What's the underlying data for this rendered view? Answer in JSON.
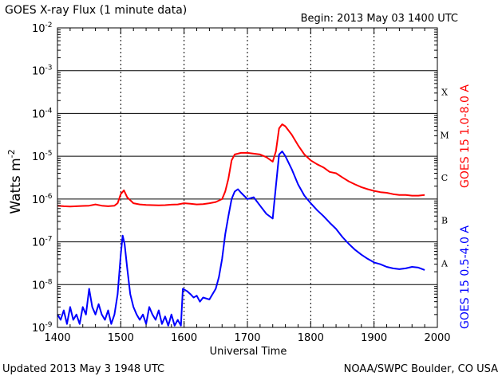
{
  "chart_data": {
    "type": "line",
    "title": "GOES X-ray Flux (1 minute data)",
    "begin_label": "Begin: 2013 May 03 1400 UTC",
    "xlabel": "Universal Time",
    "ylabel_main": "Watts m",
    "ylabel_sup": "-2",
    "footer_left": "Updated 2013 May  3 1948 UTC",
    "footer_right": "NOAA/SWPC Boulder, CO USA",
    "y_scale": "log",
    "xlim": [
      1400,
      2000
    ],
    "ylim": [
      1e-09,
      0.01
    ],
    "x_ticks": [
      "1400",
      "1500",
      "1600",
      "1700",
      "1800",
      "1900",
      "2000"
    ],
    "y_ticks": [
      {
        "base": "10",
        "exp": "-9"
      },
      {
        "base": "10",
        "exp": "-8"
      },
      {
        "base": "10",
        "exp": "-7"
      },
      {
        "base": "10",
        "exp": "-6"
      },
      {
        "base": "10",
        "exp": "-5"
      },
      {
        "base": "10",
        "exp": "-4"
      },
      {
        "base": "10",
        "exp": "-3"
      },
      {
        "base": "10",
        "exp": "-2"
      }
    ],
    "flare_classes": [
      {
        "label": "A",
        "level": 1e-08
      },
      {
        "label": "B",
        "level": 1e-07
      },
      {
        "label": "C",
        "level": 1e-06
      },
      {
        "label": "M",
        "level": 1e-05
      },
      {
        "label": "X",
        "level": 0.0001
      }
    ],
    "colors": {
      "long": "#ff0000",
      "short": "#0000ff",
      "grid": "#000000"
    },
    "series": [
      {
        "name": "GOES 15 1.0-8.0 A",
        "color": "#ff0000",
        "points": [
          [
            1400,
            7e-07
          ],
          [
            1410,
            6.8e-07
          ],
          [
            1420,
            6.7e-07
          ],
          [
            1430,
            6.8e-07
          ],
          [
            1440,
            6.9e-07
          ],
          [
            1450,
            7e-07
          ],
          [
            1460,
            7.5e-07
          ],
          [
            1470,
            7e-07
          ],
          [
            1480,
            6.8e-07
          ],
          [
            1490,
            7e-07
          ],
          [
            1495,
            8e-07
          ],
          [
            1500,
            1.3e-06
          ],
          [
            1505,
            1.6e-06
          ],
          [
            1510,
            1.1e-06
          ],
          [
            1520,
            8e-07
          ],
          [
            1530,
            7.5e-07
          ],
          [
            1540,
            7.3e-07
          ],
          [
            1550,
            7.2e-07
          ],
          [
            1560,
            7.1e-07
          ],
          [
            1570,
            7.2e-07
          ],
          [
            1580,
            7.4e-07
          ],
          [
            1590,
            7.5e-07
          ],
          [
            1600,
            8e-07
          ],
          [
            1610,
            7.8e-07
          ],
          [
            1620,
            7.5e-07
          ],
          [
            1630,
            7.6e-07
          ],
          [
            1640,
            8e-07
          ],
          [
            1650,
            8.5e-07
          ],
          [
            1660,
            1e-06
          ],
          [
            1665,
            1.5e-06
          ],
          [
            1670,
            3e-06
          ],
          [
            1675,
            8e-06
          ],
          [
            1680,
            1.1e-05
          ],
          [
            1690,
            1.2e-05
          ],
          [
            1700,
            1.2e-05
          ],
          [
            1710,
            1.15e-05
          ],
          [
            1720,
            1.1e-05
          ],
          [
            1730,
            9.5e-06
          ],
          [
            1740,
            7.5e-06
          ],
          [
            1745,
            1.3e-05
          ],
          [
            1750,
            4.5e-05
          ],
          [
            1755,
            5.6e-05
          ],
          [
            1760,
            5e-05
          ],
          [
            1770,
            3.2e-05
          ],
          [
            1780,
            1.8e-05
          ],
          [
            1790,
            1.1e-05
          ],
          [
            1800,
            8e-06
          ],
          [
            1810,
            6.5e-06
          ],
          [
            1820,
            5.5e-06
          ],
          [
            1830,
            4.3e-06
          ],
          [
            1840,
            4e-06
          ],
          [
            1850,
            3.2e-06
          ],
          [
            1860,
            2.6e-06
          ],
          [
            1870,
            2.2e-06
          ],
          [
            1880,
            1.9e-06
          ],
          [
            1890,
            1.7e-06
          ],
          [
            1900,
            1.55e-06
          ],
          [
            1910,
            1.45e-06
          ],
          [
            1920,
            1.4e-06
          ],
          [
            1930,
            1.3e-06
          ],
          [
            1940,
            1.25e-06
          ],
          [
            1950,
            1.25e-06
          ],
          [
            1960,
            1.2e-06
          ],
          [
            1970,
            1.2e-06
          ],
          [
            1980,
            1.25e-06
          ]
        ]
      },
      {
        "name": "GOES 15 0.5-4.0 A",
        "color": "#0000ff",
        "points": [
          [
            1400,
            2e-09
          ],
          [
            1405,
            1.5e-09
          ],
          [
            1410,
            2.5e-09
          ],
          [
            1415,
            1.2e-09
          ],
          [
            1420,
            3e-09
          ],
          [
            1425,
            1.5e-09
          ],
          [
            1430,
            2e-09
          ],
          [
            1435,
            1.2e-09
          ],
          [
            1440,
            3e-09
          ],
          [
            1445,
            2e-09
          ],
          [
            1450,
            8e-09
          ],
          [
            1455,
            3e-09
          ],
          [
            1460,
            2e-09
          ],
          [
            1465,
            3.5e-09
          ],
          [
            1470,
            2e-09
          ],
          [
            1475,
            1.5e-09
          ],
          [
            1480,
            2.5e-09
          ],
          [
            1485,
            1.2e-09
          ],
          [
            1490,
            2e-09
          ],
          [
            1495,
            6e-09
          ],
          [
            1500,
            5e-08
          ],
          [
            1503,
            1.4e-07
          ],
          [
            1506,
            9e-08
          ],
          [
            1510,
            2.5e-08
          ],
          [
            1515,
            6e-09
          ],
          [
            1520,
            3e-09
          ],
          [
            1525,
            2e-09
          ],
          [
            1530,
            1.5e-09
          ],
          [
            1535,
            2e-09
          ],
          [
            1540,
            1.2e-09
          ],
          [
            1545,
            3e-09
          ],
          [
            1550,
            2e-09
          ],
          [
            1555,
            1.5e-09
          ],
          [
            1560,
            2.5e-09
          ],
          [
            1565,
            1.2e-09
          ],
          [
            1570,
            1.8e-09
          ],
          [
            1575,
            1.1e-09
          ],
          [
            1580,
            2e-09
          ],
          [
            1585,
            1.1e-09
          ],
          [
            1590,
            1.5e-09
          ],
          [
            1595,
            1.1e-09
          ],
          [
            1598,
            8e-09
          ],
          [
            1605,
            7e-09
          ],
          [
            1610,
            6e-09
          ],
          [
            1615,
            5e-09
          ],
          [
            1620,
            5.5e-09
          ],
          [
            1625,
            4e-09
          ],
          [
            1630,
            5e-09
          ],
          [
            1640,
            4.5e-09
          ],
          [
            1650,
            8e-09
          ],
          [
            1655,
            1.5e-08
          ],
          [
            1660,
            4e-08
          ],
          [
            1665,
            1.5e-07
          ],
          [
            1670,
            4e-07
          ],
          [
            1675,
            1e-06
          ],
          [
            1680,
            1.5e-06
          ],
          [
            1685,
            1.7e-06
          ],
          [
            1690,
            1.4e-06
          ],
          [
            1700,
            1e-06
          ],
          [
            1710,
            1.1e-06
          ],
          [
            1720,
            7e-07
          ],
          [
            1730,
            4.5e-07
          ],
          [
            1740,
            3.5e-07
          ],
          [
            1745,
            2e-06
          ],
          [
            1750,
            1.1e-05
          ],
          [
            1755,
            1.3e-05
          ],
          [
            1760,
            1e-05
          ],
          [
            1770,
            5e-06
          ],
          [
            1780,
            2.2e-06
          ],
          [
            1790,
            1.2e-06
          ],
          [
            1800,
            8e-07
          ],
          [
            1810,
            5.5e-07
          ],
          [
            1820,
            4e-07
          ],
          [
            1830,
            2.8e-07
          ],
          [
            1840,
            2e-07
          ],
          [
            1850,
            1.3e-07
          ],
          [
            1860,
            9e-08
          ],
          [
            1870,
            6.5e-08
          ],
          [
            1880,
            5e-08
          ],
          [
            1890,
            4e-08
          ],
          [
            1900,
            3.3e-08
          ],
          [
            1910,
            3e-08
          ],
          [
            1920,
            2.6e-08
          ],
          [
            1930,
            2.4e-08
          ],
          [
            1940,
            2.3e-08
          ],
          [
            1950,
            2.4e-08
          ],
          [
            1960,
            2.6e-08
          ],
          [
            1970,
            2.5e-08
          ],
          [
            1980,
            2.2e-08
          ]
        ]
      }
    ]
  }
}
